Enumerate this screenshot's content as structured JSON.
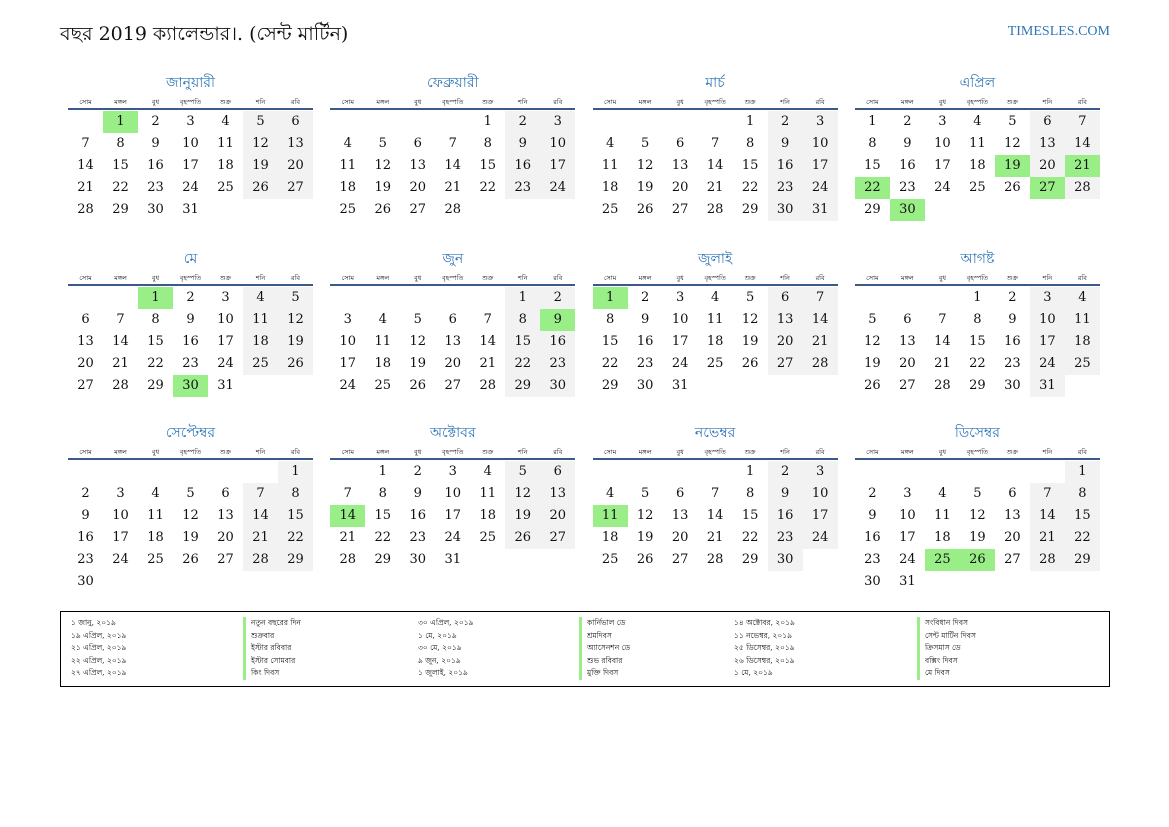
{
  "title": "বছর 2019 ক্যালেন্ডার।. (সেন্ট মার্টিন)",
  "brand": "TIMESLES.COM",
  "colors": {
    "accent": "#2e75b6",
    "holiday": "#99ee88",
    "weekend": "#f2f2f2"
  },
  "weekdays": [
    "সোম",
    "মঙ্গল",
    "বুধ",
    "বৃহস্পতি",
    "শুক্র",
    "শনি",
    "রবি"
  ],
  "months": [
    {
      "name": "জানুয়ারী",
      "start_weekday": 1,
      "days": 31,
      "holidays": [
        1
      ]
    },
    {
      "name": "ফেব্রুয়ারী",
      "start_weekday": 4,
      "days": 28,
      "holidays": []
    },
    {
      "name": "মার্চ",
      "start_weekday": 4,
      "days": 31,
      "holidays": []
    },
    {
      "name": "এপ্রিল",
      "start_weekday": 0,
      "days": 30,
      "holidays": [
        19,
        21,
        22,
        27,
        30
      ]
    },
    {
      "name": "মে",
      "start_weekday": 2,
      "days": 31,
      "holidays": [
        1,
        30
      ]
    },
    {
      "name": "জুন",
      "start_weekday": 5,
      "days": 30,
      "holidays": [
        9
      ]
    },
    {
      "name": "জুলাই",
      "start_weekday": 0,
      "days": 31,
      "holidays": [
        1
      ]
    },
    {
      "name": "আগষ্ট",
      "start_weekday": 3,
      "days": 31,
      "holidays": []
    },
    {
      "name": "সেপ্টেম্বর",
      "start_weekday": 6,
      "days": 30,
      "holidays": []
    },
    {
      "name": "অক্টোবর",
      "start_weekday": 1,
      "days": 31,
      "holidays": [
        14
      ]
    },
    {
      "name": "নভেম্বর",
      "start_weekday": 4,
      "days": 30,
      "holidays": [
        11
      ]
    },
    {
      "name": "ডিসেম্বর",
      "start_weekday": 6,
      "days": 31,
      "holidays": [
        25,
        26
      ]
    }
  ],
  "holiday_list": [
    {
      "date": "১ জানু, ২০১৯",
      "name": "নতুন বছরের দিন"
    },
    {
      "date": "১৯ এপ্রিল, ২০১৯",
      "name": "শুক্রবার"
    },
    {
      "date": "২১ এপ্রিল, ২০১৯",
      "name": "ইস্টার রবিবার"
    },
    {
      "date": "২২ এপ্রিল, ২০১৯",
      "name": "ইস্টার সোমবার"
    },
    {
      "date": "২৭ এপ্রিল, ২০১৯",
      "name": "কিং দিবস"
    },
    {
      "date": "৩০ এপ্রিল, ২০১৯",
      "name": "কার্নিভাল ডে"
    },
    {
      "date": "১ মে, ২০১৯",
      "name": "শ্রমদিবস"
    },
    {
      "date": "৩০ মে, ২০১৯",
      "name": "অ্যাসেনশন ডে"
    },
    {
      "date": "৯ জুন, ২০১৯",
      "name": "শুভ রবিবার"
    },
    {
      "date": "১ জুলাই, ২০১৯",
      "name": "মুক্তি দিবস"
    },
    {
      "date": "১৪ অক্টোবর, ২০১৯",
      "name": "সংবিধান দিবস"
    },
    {
      "date": "১১ নভেম্বর, ২০১৯",
      "name": "সেন্ট মার্টিন দিবস"
    },
    {
      "date": "২৫ ডিসেম্বর, ২০১৯",
      "name": "ক্রিসমাস ডে"
    },
    {
      "date": "২৬ ডিসেম্বর, ২০১৯",
      "name": "বক্সিং দিবস"
    },
    {
      "date": "১ মে, ২০১৯",
      "name": "মে দিবস"
    }
  ]
}
